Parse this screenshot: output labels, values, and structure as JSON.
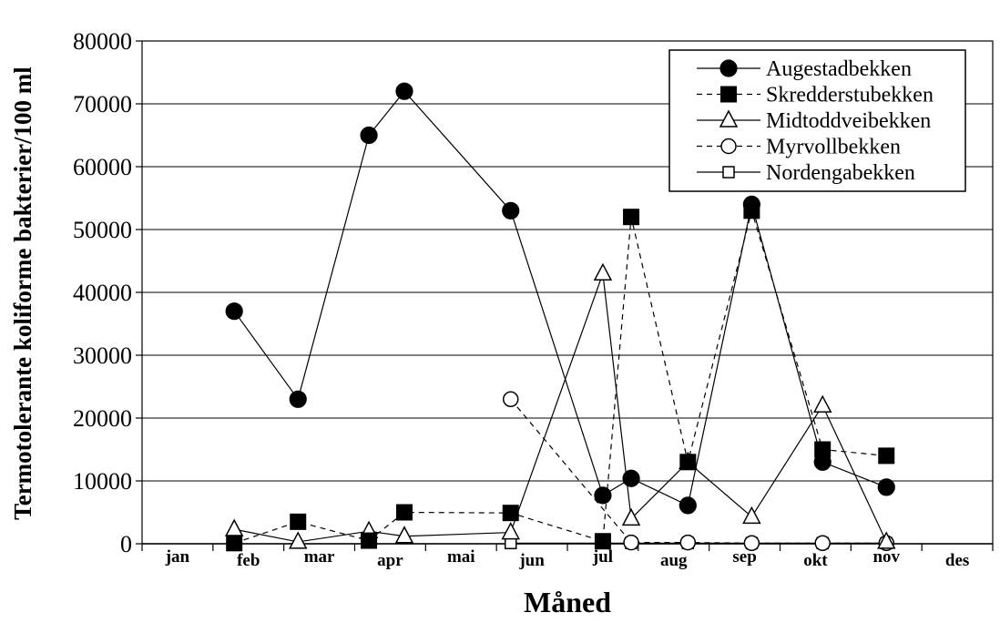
{
  "chart_data": {
    "type": "line",
    "title": "",
    "xlabel": "Måned",
    "ylabel": "Termotolerante koliforme bakterier/100 ml",
    "ylim": [
      0,
      80000
    ],
    "yticks": [
      "0",
      "10000",
      "20000",
      "30000",
      "40000",
      "50000",
      "60000",
      "70000",
      "80000"
    ],
    "months": [
      "jan",
      "feb",
      "mar",
      "apr",
      "mai",
      "jun",
      "jul",
      "aug",
      "sep",
      "okt",
      "nov",
      "des"
    ],
    "grid": true,
    "legend_position": "top-right",
    "series": [
      {
        "name": "Augestadbekken",
        "marker": "filled-circle",
        "line": "solid",
        "points": [
          [
            1.3,
            37000
          ],
          [
            2.2,
            23000
          ],
          [
            3.2,
            65000
          ],
          [
            3.7,
            72000
          ],
          [
            5.2,
            53000
          ],
          [
            6.5,
            7700
          ],
          [
            6.9,
            10400
          ],
          [
            7.7,
            6100
          ],
          [
            8.6,
            54000
          ],
          [
            9.6,
            13000
          ],
          [
            10.5,
            9000
          ]
        ]
      },
      {
        "name": "Skredderstubekken",
        "marker": "filled-square",
        "line": "dashed",
        "points": [
          [
            1.3,
            100
          ],
          [
            2.2,
            3500
          ],
          [
            3.2,
            500
          ],
          [
            3.7,
            5000
          ],
          [
            5.2,
            4900
          ],
          [
            6.5,
            400
          ],
          [
            6.9,
            52000
          ],
          [
            7.7,
            13000
          ],
          [
            8.6,
            53000
          ],
          [
            9.6,
            15000
          ],
          [
            10.5,
            14000
          ]
        ]
      },
      {
        "name": "Midtoddveibekken",
        "marker": "open-triangle",
        "line": "solid",
        "points": [
          [
            1.3,
            2300
          ],
          [
            2.2,
            300
          ],
          [
            3.2,
            2000
          ],
          [
            3.7,
            1200
          ],
          [
            5.2,
            1800
          ],
          [
            6.5,
            43000
          ],
          [
            6.9,
            4000
          ],
          [
            7.7,
            13000
          ],
          [
            8.6,
            4300
          ],
          [
            9.6,
            22000
          ],
          [
            10.5,
            300
          ]
        ]
      },
      {
        "name": "Myrvollbekken",
        "marker": "open-circle",
        "line": "dashed",
        "points": [
          [
            5.2,
            23000
          ],
          [
            6.9,
            200
          ],
          [
            7.7,
            200
          ],
          [
            8.6,
            100
          ],
          [
            9.6,
            100
          ],
          [
            10.5,
            100
          ]
        ]
      },
      {
        "name": "Nordengabekken",
        "marker": "open-square",
        "line": "solid",
        "points": [
          [
            5.2,
            100
          ],
          [
            6.9,
            100
          ],
          [
            7.7,
            100
          ],
          [
            8.6,
            100
          ],
          [
            9.6,
            100
          ],
          [
            10.5,
            100
          ]
        ]
      }
    ]
  }
}
